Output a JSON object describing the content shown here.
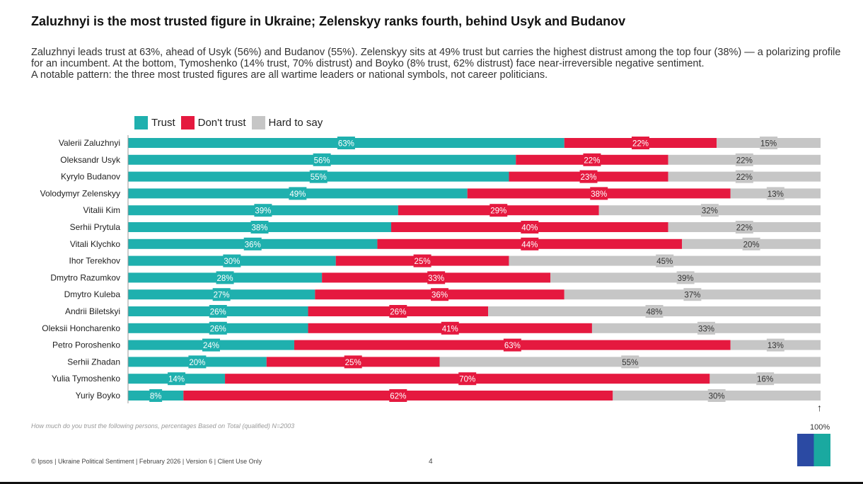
{
  "title": "Zaluzhnyi is the most trusted figure in Ukraine; Zelenskyy ranks fourth, behind Usyk and Budanov",
  "description": [
    "Zaluzhnyi leads trust at 63%, ahead of Usyk (56%) and Budanov (55%). Zelenskyy sits at 49% trust but carries the highest distrust among the top four (38%) — a polarizing profile for an incumbent. At the bottom, Tymoshenko (14% trust, 70% distrust) and Boyko (8% trust, 62% distrust) face near-irreversible negative sentiment.",
    "A notable pattern: the three most trusted figures are all wartime leaders or national symbols, not career politicians."
  ],
  "note": "How much do you trust the following persons, percentages Based on Total (qualified) N=2003",
  "footer": "© Ipsos | Ukraine Political Sentiment | February 2026 | Version 6 | Client Use Only",
  "page_number": "4",
  "axis_end_label": "100%",
  "logo_text": "Ipsos",
  "colors": {
    "trust": "#1fb0ae",
    "dont_trust": "#e5193f",
    "hard_to_say": "#c6c6c6"
  },
  "chart_data": {
    "type": "bar",
    "orientation": "horizontal",
    "stacked": true,
    "legend_position": "top-left",
    "xlim": [
      0,
      100
    ],
    "categories": [
      "Valerii Zaluzhnyi",
      "Oleksandr Usyk",
      "Kyrylo Budanov",
      "Volodymyr Zelenskyy",
      "Vitalii Kim",
      "Serhii Prytula",
      "Vitali Klychko",
      "Ihor Terekhov",
      "Dmytro Razumkov",
      "Dmytro Kuleba",
      "Andrii Biletskyi",
      "Oleksii Honcharenko",
      "Petro Poroshenko",
      "Serhii Zhadan",
      "Yulia Tymoshenko",
      "Yuriy Boyko"
    ],
    "series": [
      {
        "name": "Trust",
        "values": [
          63,
          56,
          55,
          49,
          39,
          38,
          36,
          30,
          28,
          27,
          26,
          26,
          24,
          20,
          14,
          8
        ]
      },
      {
        "name": "Don't trust",
        "values": [
          22,
          22,
          23,
          38,
          29,
          40,
          44,
          25,
          33,
          36,
          26,
          41,
          63,
          25,
          70,
          62
        ]
      },
      {
        "name": "Hard to say",
        "values": [
          15,
          22,
          22,
          13,
          32,
          22,
          20,
          45,
          39,
          37,
          48,
          33,
          13,
          55,
          16,
          30
        ]
      }
    ]
  }
}
